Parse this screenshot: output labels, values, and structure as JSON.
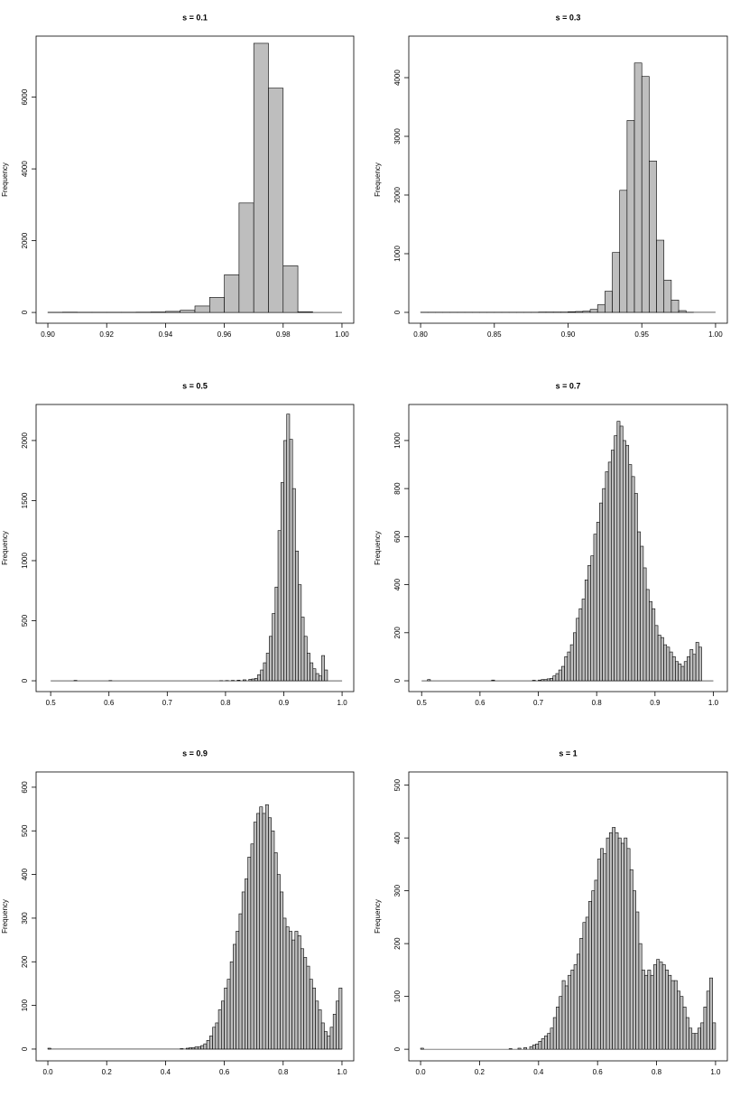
{
  "chart_data": [
    {
      "type": "histogram",
      "title": "s = 0.1",
      "ylabel": "Frequency",
      "color": "#bebebe",
      "bins": [
        0.9,
        0.905,
        0.91,
        0.915,
        0.92,
        0.925,
        0.93,
        0.935,
        0.94,
        0.945,
        0.95,
        0.955,
        0.96,
        0.965,
        0.97,
        0.975,
        0.98,
        0.985,
        0.99,
        0.995,
        1
      ],
      "counts": [
        3,
        8,
        5,
        5,
        5,
        5,
        8,
        12,
        30,
        60,
        180,
        420,
        1050,
        3050,
        7500,
        6250,
        1300,
        20,
        0,
        0
      ],
      "xlim": [
        0.896,
        1.004
      ],
      "ylim": [
        -300,
        7700
      ],
      "xticks": [
        {
          "value": 0.9,
          "label": "0.90"
        },
        0.92,
        0.94,
        0.96,
        0.98,
        {
          "value": 1,
          "label": "1.00"
        }
      ],
      "yticks": [
        0,
        2000,
        4000,
        6000
      ]
    },
    {
      "type": "histogram",
      "title": "s = 0.3",
      "ylabel": "Frequency",
      "color": "#bebebe",
      "bins": [
        0.8,
        0.805,
        0.81,
        0.815,
        0.82,
        0.825,
        0.83,
        0.835,
        0.84,
        0.845,
        0.85,
        0.855,
        0.86,
        0.865,
        0.87,
        0.875,
        0.88,
        0.885,
        0.89,
        0.895,
        0.9,
        0.905,
        0.91,
        0.915,
        0.92,
        0.925,
        0.93,
        0.935,
        0.94,
        0.945,
        0.95,
        0.955,
        0.96,
        0.965,
        0.97,
        0.975,
        0.98,
        0.985,
        0.99,
        0.995,
        1
      ],
      "counts": [
        2,
        2,
        2,
        2,
        2,
        2,
        2,
        2,
        2,
        2,
        2,
        2,
        2,
        2,
        2,
        2,
        5,
        5,
        5,
        5,
        10,
        15,
        20,
        50,
        130,
        360,
        1020,
        2080,
        3270,
        4250,
        4020,
        2580,
        1230,
        550,
        210,
        30,
        2,
        0,
        0,
        0
      ],
      "xlim": [
        0.792,
        1.008
      ],
      "ylim": [
        -185,
        4708
      ],
      "xticks": [
        {
          "value": 0.8,
          "label": "0.80"
        },
        0.85,
        {
          "value": 0.9,
          "label": "0.90"
        },
        0.95,
        {
          "value": 1,
          "label": "1.00"
        }
      ],
      "yticks": [
        0,
        1000,
        2000,
        3000,
        4000
      ]
    },
    {
      "type": "histogram",
      "title": "s = 0.5",
      "ylabel": "Frequency",
      "color": "#bebebe",
      "bins": [
        0.5,
        0.505,
        0.51,
        0.515,
        0.52,
        0.525,
        0.53,
        0.535,
        0.54,
        0.545,
        0.55,
        0.555,
        0.56,
        0.565,
        0.57,
        0.575,
        0.58,
        0.585,
        0.59,
        0.595,
        0.6,
        0.605,
        0.61,
        0.615,
        0.62,
        0.625,
        0.63,
        0.635,
        0.64,
        0.645,
        0.65,
        0.655,
        0.66,
        0.665,
        0.67,
        0.675,
        0.68,
        0.685,
        0.69,
        0.695,
        0.7,
        0.705,
        0.71,
        0.715,
        0.72,
        0.725,
        0.73,
        0.735,
        0.74,
        0.745,
        0.75,
        0.755,
        0.76,
        0.765,
        0.77,
        0.775,
        0.78,
        0.785,
        0.79,
        0.795,
        0.8,
        0.805,
        0.81,
        0.815,
        0.82,
        0.825,
        0.83,
        0.835,
        0.84,
        0.845,
        0.85,
        0.855,
        0.86,
        0.865,
        0.87,
        0.875,
        0.88,
        0.885,
        0.89,
        0.895,
        0.9,
        0.905,
        0.91,
        0.915,
        0.92,
        0.925,
        0.93,
        0.935,
        0.94,
        0.945,
        0.95,
        0.955,
        0.96,
        0.965,
        0.97,
        0.975,
        0.98,
        0.985,
        0.99,
        0.995,
        1
      ],
      "counts": [
        0,
        0,
        0,
        0,
        0,
        0,
        0,
        0,
        3,
        0,
        0,
        0,
        0,
        0,
        0,
        0,
        0,
        0,
        0,
        0,
        2,
        0,
        0,
        0,
        0,
        0,
        0,
        0,
        0,
        0,
        0,
        0,
        0,
        0,
        0,
        0,
        0,
        0,
        0,
        0,
        0,
        0,
        0,
        0,
        0,
        0,
        0,
        0,
        0,
        0,
        0,
        0,
        0,
        0,
        0,
        0,
        0,
        0,
        1,
        0,
        2,
        0,
        3,
        0,
        5,
        0,
        8,
        0,
        12,
        15,
        20,
        50,
        90,
        150,
        230,
        370,
        560,
        780,
        1250,
        1650,
        2000,
        2220,
        2010,
        1600,
        1080,
        800,
        530,
        370,
        230,
        150,
        100,
        60,
        40,
        210,
        90,
        0,
        0,
        0,
        0,
        0
      ],
      "xlim": [
        0.475,
        1.02
      ],
      "ylim": [
        -90,
        2300
      ],
      "xticks": [
        0.5,
        0.6,
        0.7,
        0.8,
        0.9,
        {
          "value": 1,
          "label": "1.0"
        }
      ],
      "yticks": [
        0,
        500,
        1000,
        1500,
        2000
      ]
    },
    {
      "type": "histogram",
      "title": "s = 0.7",
      "ylabel": "Frequency",
      "color": "#bebebe",
      "bins": [
        0.5,
        0.505,
        0.51,
        0.515,
        0.52,
        0.525,
        0.53,
        0.535,
        0.54,
        0.545,
        0.55,
        0.555,
        0.56,
        0.565,
        0.57,
        0.575,
        0.58,
        0.585,
        0.59,
        0.595,
        0.6,
        0.605,
        0.61,
        0.615,
        0.62,
        0.625,
        0.63,
        0.635,
        0.64,
        0.645,
        0.65,
        0.655,
        0.66,
        0.665,
        0.67,
        0.675,
        0.68,
        0.685,
        0.69,
        0.695,
        0.7,
        0.705,
        0.71,
        0.715,
        0.72,
        0.725,
        0.73,
        0.735,
        0.74,
        0.745,
        0.75,
        0.755,
        0.76,
        0.765,
        0.77,
        0.775,
        0.78,
        0.785,
        0.79,
        0.795,
        0.8,
        0.805,
        0.81,
        0.815,
        0.82,
        0.825,
        0.83,
        0.835,
        0.84,
        0.845,
        0.85,
        0.855,
        0.86,
        0.865,
        0.87,
        0.875,
        0.88,
        0.885,
        0.89,
        0.895,
        0.9,
        0.905,
        0.91,
        0.915,
        0.92,
        0.925,
        0.93,
        0.935,
        0.94,
        0.945,
        0.95,
        0.955,
        0.96,
        0.965,
        0.97,
        0.975,
        0.98,
        0.985,
        0.99,
        0.995,
        1
      ],
      "counts": [
        0,
        0,
        5,
        0,
        0,
        0,
        0,
        0,
        0,
        0,
        0,
        0,
        0,
        0,
        0,
        0,
        0,
        0,
        0,
        0,
        0,
        0,
        0,
        0,
        3,
        0,
        0,
        0,
        0,
        0,
        0,
        0,
        0,
        0,
        0,
        0,
        0,
        0,
        2,
        0,
        3,
        5,
        5,
        8,
        10,
        20,
        30,
        45,
        60,
        100,
        120,
        150,
        200,
        260,
        300,
        340,
        420,
        480,
        520,
        610,
        660,
        740,
        800,
        870,
        910,
        960,
        1020,
        1080,
        1060,
        1000,
        980,
        900,
        850,
        780,
        620,
        560,
        470,
        380,
        330,
        300,
        230,
        190,
        180,
        150,
        140,
        120,
        100,
        80,
        70,
        60,
        80,
        100,
        130,
        110,
        160,
        140,
        0,
        0,
        0,
        0
      ],
      "xlim": [
        0.478,
        1.024
      ],
      "ylim": [
        -45,
        1150
      ],
      "xticks": [
        0.5,
        0.6,
        0.7,
        0.8,
        0.9,
        {
          "value": 1,
          "label": "1.0"
        }
      ],
      "yticks": [
        0,
        200,
        400,
        600,
        800,
        1000
      ]
    },
    {
      "type": "histogram",
      "title": "s = 0.9",
      "ylabel": "Frequency",
      "color": "#bebebe",
      "bins": [
        0,
        0.01,
        0.02,
        0.03,
        0.04,
        0.05,
        0.06,
        0.07,
        0.08,
        0.09,
        0.1,
        0.11,
        0.12,
        0.13,
        0.14,
        0.15,
        0.16,
        0.17,
        0.18,
        0.19,
        0.2,
        0.21,
        0.22,
        0.23,
        0.24,
        0.25,
        0.26,
        0.27,
        0.28,
        0.29,
        0.3,
        0.31,
        0.32,
        0.33,
        0.34,
        0.35,
        0.36,
        0.37,
        0.38,
        0.39,
        0.4,
        0.41,
        0.42,
        0.43,
        0.44,
        0.45,
        0.46,
        0.47,
        0.48,
        0.49,
        0.5,
        0.51,
        0.52,
        0.53,
        0.54,
        0.55,
        0.56,
        0.57,
        0.58,
        0.59,
        0.6,
        0.61,
        0.62,
        0.63,
        0.64,
        0.65,
        0.66,
        0.67,
        0.68,
        0.69,
        0.7,
        0.71,
        0.72,
        0.73,
        0.74,
        0.75,
        0.76,
        0.77,
        0.78,
        0.79,
        0.8,
        0.81,
        0.82,
        0.83,
        0.84,
        0.85,
        0.86,
        0.87,
        0.88,
        0.89,
        0.9,
        0.91,
        0.92,
        0.93,
        0.94,
        0.95,
        0.96,
        0.97,
        0.98,
        0.99,
        1
      ],
      "counts": [
        2,
        0,
        0,
        0,
        0,
        0,
        0,
        0,
        0,
        0,
        0,
        0,
        0,
        0,
        0,
        0,
        0,
        0,
        0,
        0,
        0,
        0,
        0,
        0,
        0,
        0,
        0,
        0,
        0,
        0,
        0,
        0,
        0,
        0,
        0,
        0,
        0,
        0,
        0,
        0,
        0,
        0,
        0,
        0,
        0,
        1,
        0,
        2,
        3,
        3,
        5,
        5,
        8,
        12,
        20,
        30,
        50,
        60,
        90,
        110,
        140,
        160,
        200,
        240,
        270,
        310,
        360,
        390,
        440,
        470,
        520,
        540,
        555,
        540,
        560,
        530,
        500,
        450,
        400,
        360,
        300,
        280,
        270,
        250,
        270,
        260,
        230,
        210,
        190,
        160,
        140,
        110,
        90,
        60,
        40,
        30,
        50,
        80,
        110,
        140
      ],
      "xlim": [
        -0.04,
        1.04
      ],
      "ylim": [
        -27,
        635
      ],
      "xticks": [
        {
          "value": 0,
          "label": "0.0"
        },
        0.2,
        0.4,
        0.6,
        0.8,
        {
          "value": 1,
          "label": "1.0"
        }
      ],
      "yticks": [
        0,
        100,
        200,
        300,
        400,
        500,
        600
      ]
    },
    {
      "type": "histogram",
      "title": "s = 1",
      "ylabel": "Frequency",
      "color": "#bebebe",
      "bins": [
        0,
        0.01,
        0.02,
        0.03,
        0.04,
        0.05,
        0.06,
        0.07,
        0.08,
        0.09,
        0.1,
        0.11,
        0.12,
        0.13,
        0.14,
        0.15,
        0.16,
        0.17,
        0.18,
        0.19,
        0.2,
        0.21,
        0.22,
        0.23,
        0.24,
        0.25,
        0.26,
        0.27,
        0.28,
        0.29,
        0.3,
        0.31,
        0.32,
        0.33,
        0.34,
        0.35,
        0.36,
        0.37,
        0.38,
        0.39,
        0.4,
        0.41,
        0.42,
        0.43,
        0.44,
        0.45,
        0.46,
        0.47,
        0.48,
        0.49,
        0.5,
        0.51,
        0.52,
        0.53,
        0.54,
        0.55,
        0.56,
        0.57,
        0.58,
        0.59,
        0.6,
        0.61,
        0.62,
        0.63,
        0.64,
        0.65,
        0.66,
        0.67,
        0.68,
        0.69,
        0.7,
        0.71,
        0.72,
        0.73,
        0.74,
        0.75,
        0.76,
        0.77,
        0.78,
        0.79,
        0.8,
        0.81,
        0.82,
        0.83,
        0.84,
        0.85,
        0.86,
        0.87,
        0.88,
        0.89,
        0.9,
        0.91,
        0.92,
        0.93,
        0.94,
        0.95,
        0.96,
        0.97,
        0.98,
        0.99,
        1
      ],
      "counts": [
        2,
        0,
        0,
        0,
        0,
        0,
        0,
        0,
        0,
        0,
        0,
        0,
        0,
        0,
        0,
        0,
        0,
        0,
        0,
        0,
        0,
        0,
        0,
        0,
        0,
        0,
        0,
        0,
        0,
        0,
        1,
        0,
        0,
        2,
        0,
        3,
        0,
        5,
        8,
        10,
        15,
        20,
        25,
        30,
        40,
        60,
        80,
        100,
        130,
        120,
        140,
        150,
        160,
        180,
        210,
        240,
        250,
        280,
        300,
        320,
        360,
        380,
        370,
        400,
        410,
        420,
        410,
        400,
        390,
        400,
        380,
        340,
        300,
        260,
        200,
        150,
        140,
        150,
        140,
        160,
        170,
        165,
        160,
        150,
        140,
        130,
        130,
        110,
        100,
        80,
        60,
        40,
        30,
        30,
        40,
        50,
        80,
        110,
        135,
        50
      ],
      "xlim": [
        -0.04,
        1.04
      ],
      "ylim": [
        -22,
        525
      ],
      "xticks": [
        {
          "value": 0,
          "label": "0.0"
        },
        0.2,
        0.4,
        0.6,
        0.8,
        {
          "value": 1,
          "label": "1.0"
        }
      ],
      "yticks": [
        0,
        100,
        200,
        300,
        400,
        500
      ]
    }
  ]
}
